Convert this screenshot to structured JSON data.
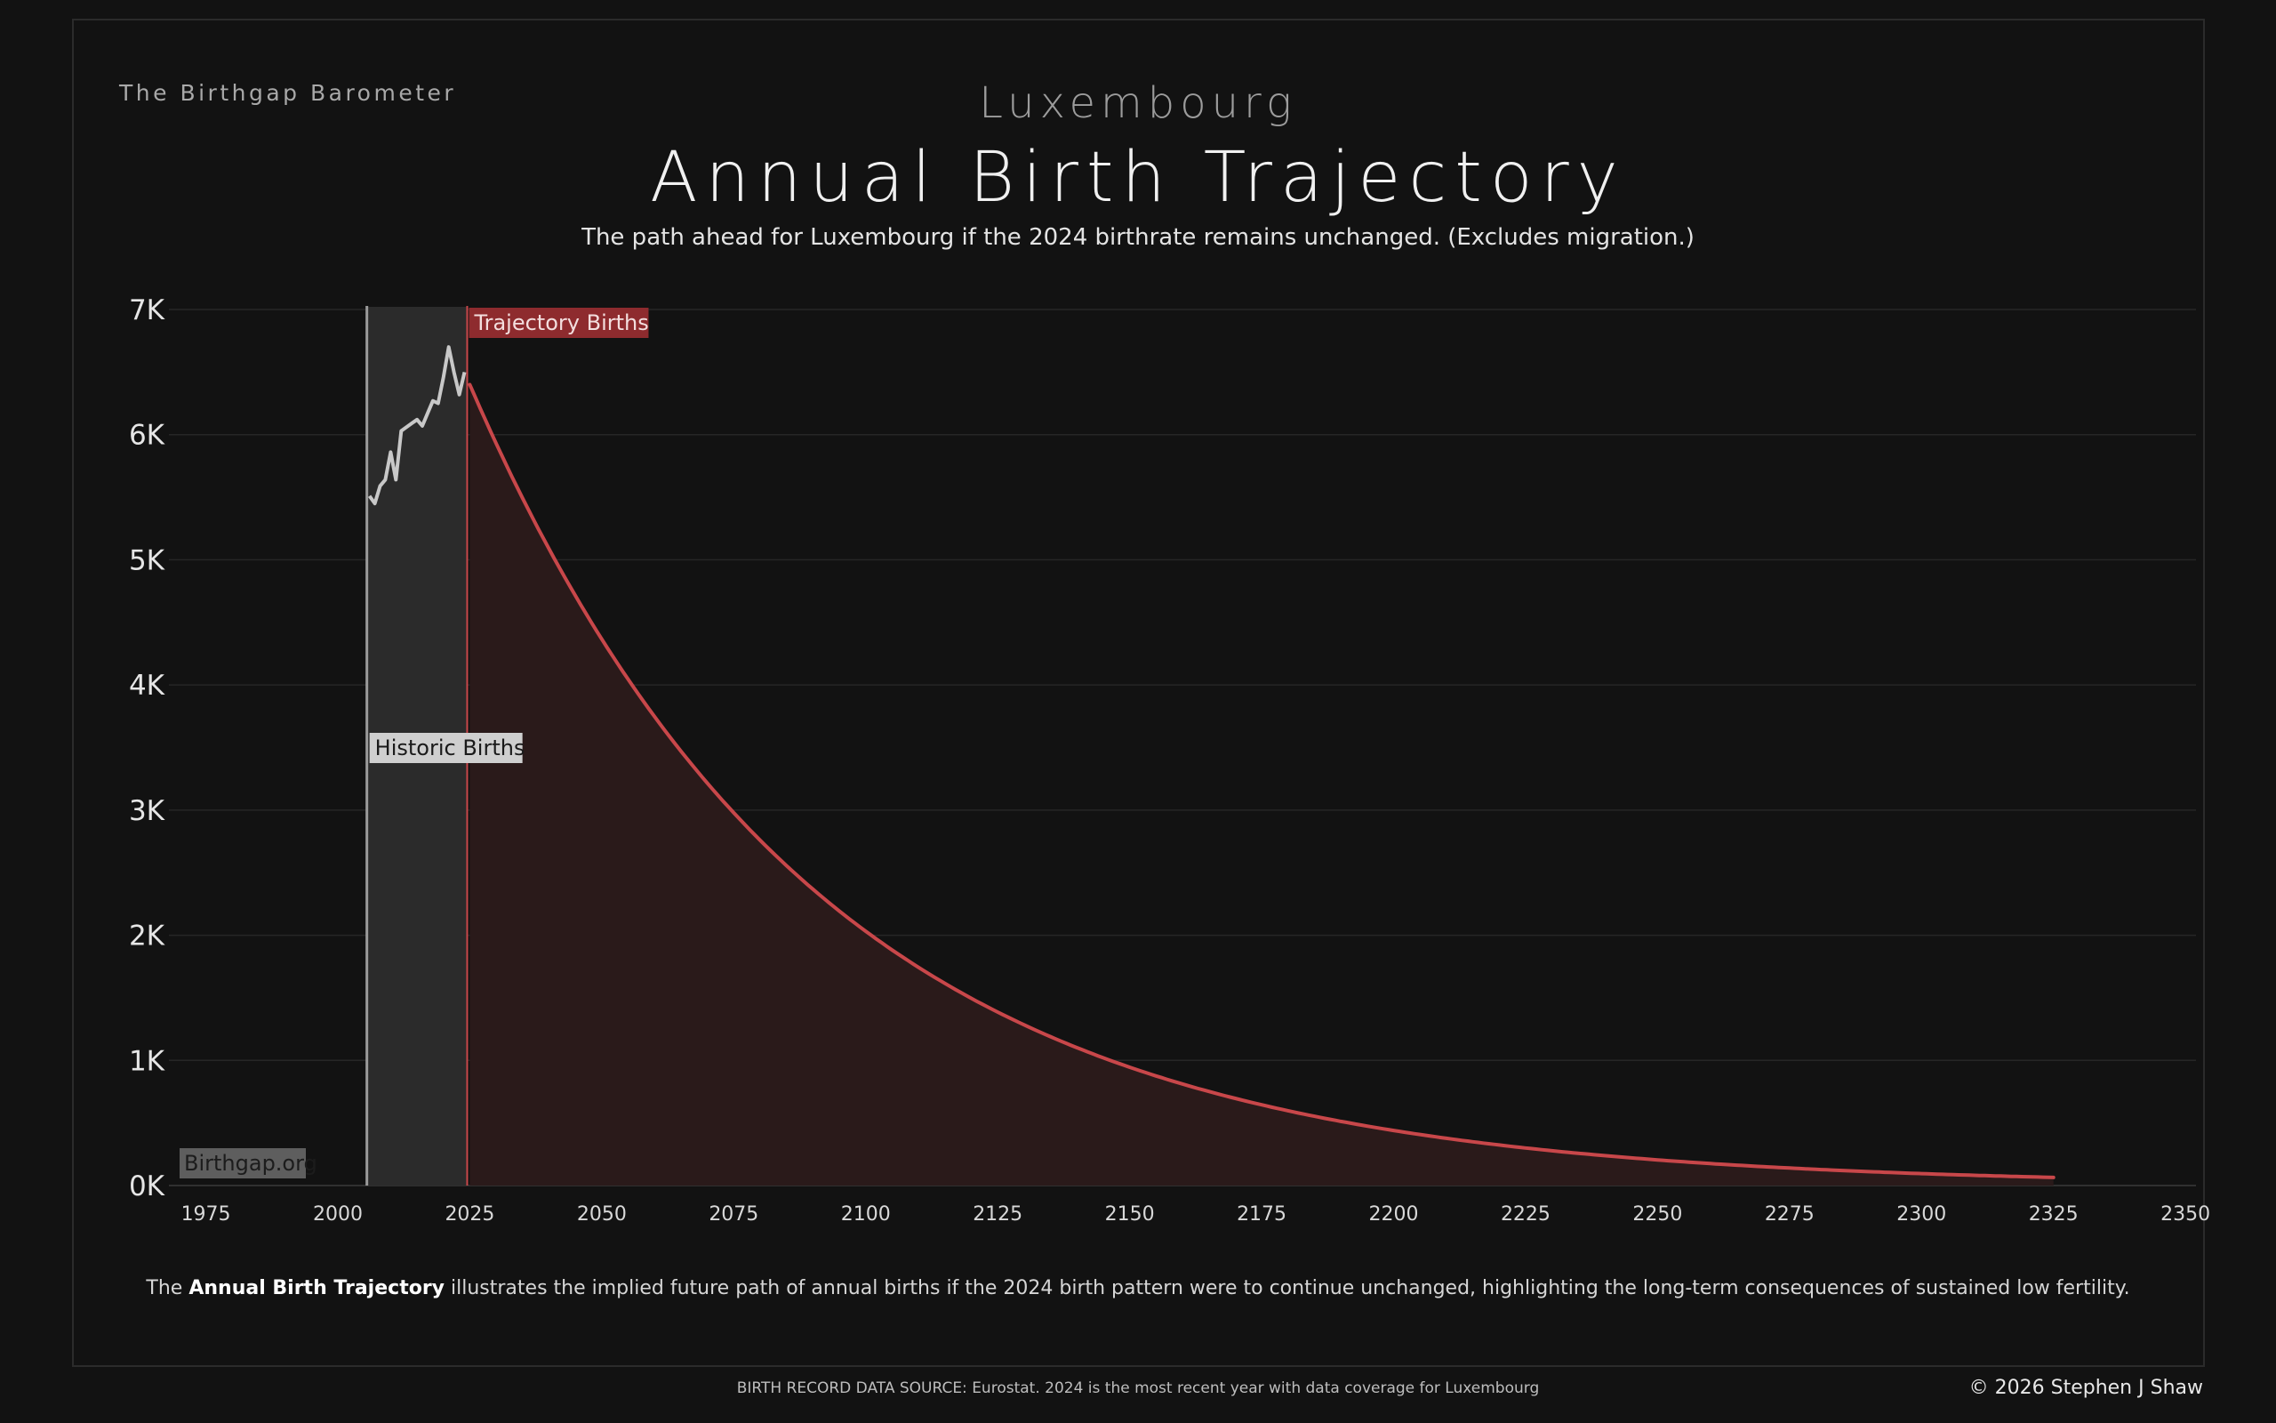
{
  "header": {
    "brand": "The Birthgap Barometer",
    "country": "Luxembourg",
    "title": "Annual Birth Trajectory",
    "subtitle": "The path ahead for Luxembourg if the 2024 birthrate remains unchanged.  (Excludes migration.)"
  },
  "footer": {
    "caption_prefix": "The ",
    "caption_bold": "Annual Birth Trajectory",
    "caption_rest": " illustrates the implied future path of annual births if the 2024 birth pattern were to continue unchanged, highlighting the long-term consequences of sustained low fertility.",
    "source": "BIRTH RECORD DATA SOURCE: Eurostat. 2024 is the most recent year with data coverage for Luxembourg",
    "copyright": "© 2026 Stephen J Shaw"
  },
  "colors": {
    "background": "#121212",
    "historic_line": "#c8c8c8",
    "historic_fill": "#2b2b2b",
    "trajectory_line": "#c8474a",
    "trajectory_fill": "#2a1a1a",
    "trajectory_label_bg": "#8e2b2e",
    "historic_label_bg": "#cfcfcf",
    "watermark_bg": "#5e5e5e"
  },
  "chart_data": {
    "type": "area",
    "xlim": [
      1968,
      2352
    ],
    "ylim": [
      0,
      7000
    ],
    "x_ticks": [
      "1975",
      "2000",
      "2025",
      "2050",
      "2075",
      "2100",
      "2125",
      "2150",
      "2175",
      "2200",
      "2225",
      "2250",
      "2275",
      "2300",
      "2325",
      "2350"
    ],
    "x_tick_values": [
      1975,
      2000,
      2025,
      2050,
      2075,
      2100,
      2125,
      2150,
      2175,
      2200,
      2225,
      2250,
      2275,
      2300,
      2325,
      2350
    ],
    "y_ticks": [
      "0K",
      "1K",
      "2K",
      "3K",
      "4K",
      "5K",
      "6K",
      "7K"
    ],
    "y_tick_values": [
      0,
      1000,
      2000,
      3000,
      4000,
      5000,
      6000,
      7000
    ],
    "grid": true,
    "annotations": {
      "trajectory_label": "Trajectory Births",
      "historic_label": "Historic Births",
      "watermark": "Birthgap.org"
    },
    "series": [
      {
        "name": "Historic Births",
        "x": [
          2006,
          2007,
          2008,
          2009,
          2010,
          2011,
          2012,
          2013,
          2014,
          2015,
          2016,
          2017,
          2018,
          2019,
          2020,
          2021,
          2022,
          2023,
          2024
        ],
        "values": [
          5510,
          5450,
          5590,
          5640,
          5860,
          5640,
          6030,
          6060,
          6090,
          6120,
          6070,
          6170,
          6270,
          6250,
          6460,
          6700,
          6500,
          6320,
          6500
        ]
      },
      {
        "name": "Trajectory Births",
        "start_year": 2025,
        "end_year": 2325,
        "start_value": 6400,
        "end_value": 65,
        "x": [
          2025,
          2050,
          2075,
          2100,
          2125,
          2150,
          2175,
          2200,
          2225,
          2250,
          2275,
          2300,
          2325
        ],
        "values": [
          6400,
          4360,
          2970,
          2020,
          1375,
          936,
          637,
          433,
          295,
          200,
          136,
          93,
          65
        ]
      }
    ]
  }
}
